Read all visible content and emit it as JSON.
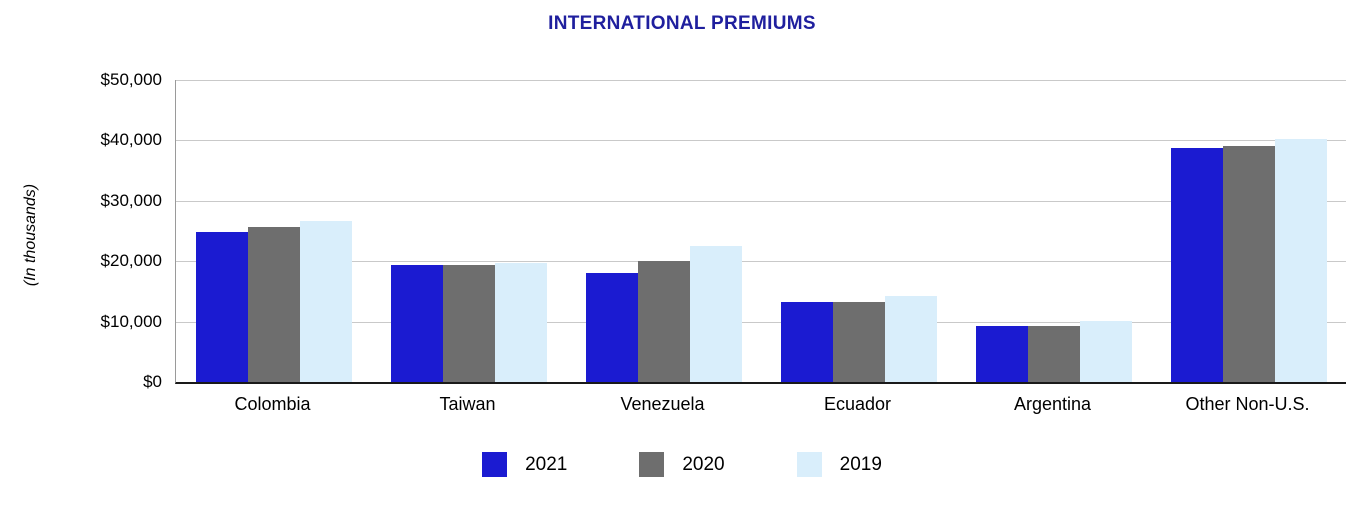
{
  "title": "INTERNATIONAL PREMIUMS",
  "colors": {
    "title_text": "#1f1f9e",
    "gridline": "#c9c9c9",
    "axis_line": "#1a1a1a"
  },
  "chart_data": {
    "type": "bar",
    "title": "INTERNATIONAL PREMIUMS",
    "xlabel": "",
    "ylabel": "(In thousands)",
    "categories": [
      "Colombia",
      "Taiwan",
      "Venezuela",
      "Ecuador",
      "Argentina",
      "Other Non-U.S."
    ],
    "series": [
      {
        "name": "2021",
        "color": "#1b1bd1",
        "values": [
          24800,
          19300,
          18000,
          13300,
          9300,
          38700
        ]
      },
      {
        "name": "2020",
        "color": "#6e6e6e",
        "values": [
          25700,
          19300,
          20000,
          13300,
          9300,
          39000
        ]
      },
      {
        "name": "2019",
        "color": "#d9eefb",
        "values": [
          26700,
          19700,
          22500,
          14200,
          10100,
          40300
        ]
      }
    ],
    "ylim": [
      0,
      50000
    ],
    "ytick_step": 10000,
    "ytick_labels": [
      "$0",
      "$10,000",
      "$20,000",
      "$30,000",
      "$40,000",
      "$50,000"
    ],
    "grid": true,
    "legend_position": "bottom"
  }
}
